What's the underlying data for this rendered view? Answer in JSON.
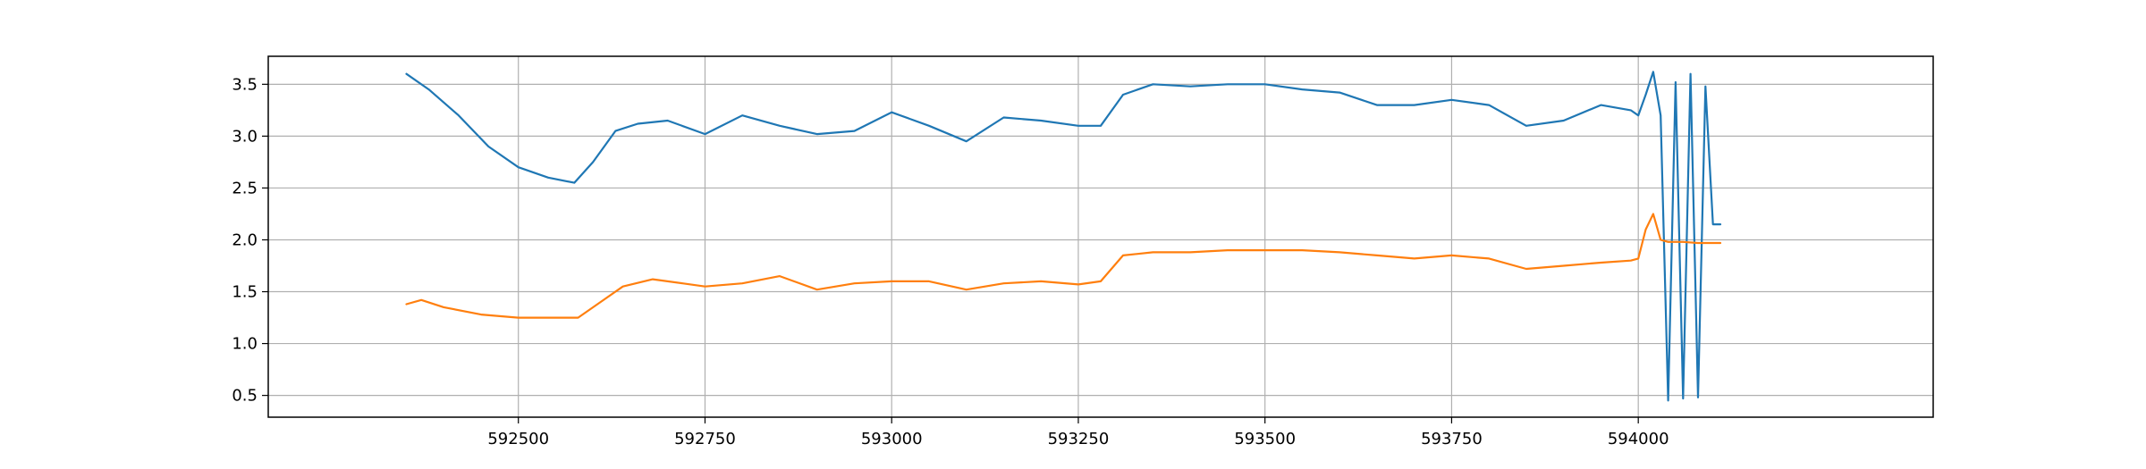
{
  "chart_data": {
    "type": "line",
    "title": "",
    "xlabel": "",
    "ylabel": "",
    "xlim": [
      592165,
      594395
    ],
    "ylim": [
      0.29,
      3.77
    ],
    "grid": true,
    "legend": "none",
    "x_ticks": [
      592500,
      592750,
      593000,
      593250,
      593500,
      593750,
      594000
    ],
    "x_tick_labels": [
      "592500",
      "592750",
      "593000",
      "593250",
      "593500",
      "593750",
      "594000"
    ],
    "y_ticks": [
      0.5,
      1.0,
      1.5,
      2.0,
      2.5,
      3.0,
      3.5
    ],
    "y_tick_labels": [
      "0.5",
      "1.0",
      "1.5",
      "2.0",
      "2.5",
      "3.0",
      "3.5"
    ],
    "series": [
      {
        "color": "#1f77b4",
        "x": [
          592350,
          592380,
          592420,
          592460,
          592500,
          592540,
          592575,
          592600,
          592630,
          592660,
          592700,
          592750,
          592800,
          592850,
          592900,
          592950,
          593000,
          593050,
          593100,
          593150,
          593200,
          593250,
          593280,
          593310,
          593350,
          593400,
          593450,
          593500,
          593550,
          593600,
          593650,
          593700,
          593750,
          593800,
          593850,
          593900,
          593950,
          593990,
          594000,
          594010,
          594020,
          594030,
          594040,
          594050,
          594060,
          594070,
          594080,
          594090,
          594100,
          594110
        ],
        "y": [
          3.6,
          3.45,
          3.2,
          2.9,
          2.7,
          2.6,
          2.55,
          2.75,
          3.05,
          3.12,
          3.15,
          3.02,
          3.2,
          3.1,
          3.02,
          3.05,
          3.23,
          3.1,
          2.95,
          3.18,
          3.15,
          3.1,
          3.1,
          3.4,
          3.5,
          3.48,
          3.5,
          3.5,
          3.45,
          3.42,
          3.3,
          3.3,
          3.35,
          3.3,
          3.1,
          3.15,
          3.3,
          3.25,
          3.2,
          3.4,
          3.62,
          3.2,
          0.45,
          3.52,
          0.47,
          3.6,
          0.48,
          3.48,
          2.15,
          2.15
        ]
      },
      {
        "color": "#ff7f0e",
        "x": [
          592350,
          592370,
          592400,
          592450,
          592500,
          592550,
          592580,
          592610,
          592640,
          592680,
          592720,
          592750,
          592800,
          592850,
          592900,
          592950,
          593000,
          593050,
          593100,
          593150,
          593200,
          593250,
          593280,
          593310,
          593350,
          593400,
          593450,
          593500,
          593550,
          593600,
          593650,
          593700,
          593750,
          593800,
          593850,
          593900,
          593950,
          593990,
          594000,
          594010,
          594020,
          594030,
          594040,
          594060,
          594080,
          594100,
          594110
        ],
        "y": [
          1.38,
          1.42,
          1.35,
          1.28,
          1.25,
          1.25,
          1.25,
          1.4,
          1.55,
          1.62,
          1.58,
          1.55,
          1.58,
          1.65,
          1.52,
          1.58,
          1.6,
          1.6,
          1.52,
          1.58,
          1.6,
          1.57,
          1.6,
          1.85,
          1.88,
          1.88,
          1.9,
          1.9,
          1.9,
          1.88,
          1.85,
          1.82,
          1.85,
          1.82,
          1.72,
          1.75,
          1.78,
          1.8,
          1.82,
          2.1,
          2.25,
          2.0,
          1.98,
          1.98,
          1.97,
          1.97,
          1.97
        ]
      }
    ]
  }
}
